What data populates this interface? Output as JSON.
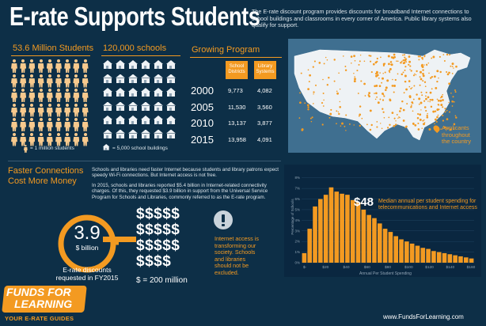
{
  "header": {
    "title": "E-rate Supports Students",
    "intro": "The E-rate discount program provides discounts for broadband Internet connections to school buildings and classrooms in every corner of America. Public library systems also qualify for support."
  },
  "students": {
    "heading": "53.6 Million Students",
    "legend": "= 1 million students"
  },
  "schools": {
    "heading": "120,000 schools",
    "legend": "= 5,000 school buildings"
  },
  "growth": {
    "heading": "Growing Program",
    "col1": "School Districts",
    "col2": "Library Systems",
    "rows": [
      {
        "year": "2000",
        "districts": "9,773",
        "libraries": "4,082"
      },
      {
        "year": "2005",
        "districts": "11,530",
        "libraries": "3,560"
      },
      {
        "year": "2010",
        "districts": "13,137",
        "libraries": "3,877"
      },
      {
        "year": "2015",
        "districts": "13,958",
        "libraries": "4,091"
      }
    ]
  },
  "map": {
    "caption_line1": "Applicants",
    "caption_line2": "throughout",
    "caption_line3": "the country"
  },
  "faster": {
    "heading_line1": "Faster Connections",
    "heading_line2": "Cost More Money",
    "para1": "Schools and libraries need faster Internet because students and library patrons expect speedy Wi-Fi connections. But Internet access is not free.",
    "para2": "In 2015, schools and libraries reported $5.4 billion in Internet-related connectivity charges. Of this, they requested $3.9 billion in support from the Universal Service Program for Schools and Libraries, commonly referred to as the E-rate program."
  },
  "discounts": {
    "value": "3.9",
    "unit": "$ billion",
    "caption_line1": "E-rate discounts",
    "caption_line2": "requested in FY2015",
    "dollar_rows": "$$$$$\n$$$$$\n$$$$$\n$$$$",
    "scale_note": "$ = 200 million"
  },
  "internet_note": "Internet access is transforming our society. Schools and libraries should not be excluded.",
  "chart_data": {
    "type": "bar",
    "xlabel": "Annual Per Student Spending",
    "ylabel": "Percentage of Schools",
    "callout_value": "$48",
    "callout_text_line1": "Median annual per student spending for",
    "callout_text_line2": "telecommunications and Internet access",
    "y_ticks": [
      "0%",
      "1%",
      "2%",
      "3%",
      "4%",
      "5%",
      "6%",
      "7%",
      "8%"
    ],
    "x_ticks": [
      "$-",
      "$20",
      "$40",
      "$60",
      "$80",
      "$100",
      "$120",
      "$140",
      "$160"
    ],
    "ylim": [
      0,
      8.5
    ],
    "values": [
      0.9,
      3.2,
      5.3,
      6.0,
      6.4,
      7.1,
      6.7,
      6.5,
      6.4,
      5.9,
      5.7,
      5.0,
      4.5,
      4.2,
      3.7,
      3.2,
      2.9,
      2.5,
      2.2,
      2.0,
      1.8,
      1.6,
      1.4,
      1.3,
      1.1,
      1.0,
      0.9,
      0.8,
      0.7,
      0.6,
      0.5,
      0.4
    ],
    "bar_color": "#f39a21"
  },
  "logo": {
    "line1": "FUNDS FOR",
    "line2": "LEARNING",
    "tagline": "YOUR E-RATE GUIDES"
  },
  "website": "www.FundsForLearning.com"
}
